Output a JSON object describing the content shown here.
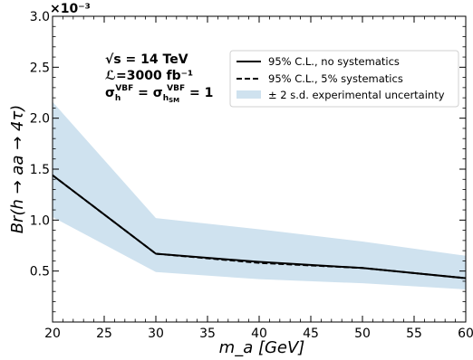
{
  "chart_data": {
    "type": "line",
    "x": [
      20,
      30,
      40,
      50,
      60
    ],
    "xlabel": "m_a [GeV]",
    "ylabel": "Br(h → aa → 4τ)",
    "xlim": [
      20,
      60
    ],
    "ylim": [
      0,
      3.0
    ],
    "y_multiplier_label": "×10⁻³",
    "x_ticks": [
      "20",
      "25",
      "30",
      "35",
      "40",
      "45",
      "50",
      "55",
      "60"
    ],
    "y_ticks": [
      "0.5",
      "1.0",
      "1.5",
      "2.0",
      "2.5",
      "3.0"
    ],
    "grid": false,
    "legend_position": "top-right",
    "series": [
      {
        "name": "95% C.L., no systematics",
        "style": "solid",
        "color": "#000000",
        "values": [
          1.44,
          0.67,
          0.59,
          0.53,
          0.43
        ]
      },
      {
        "name": "95% C.L., 5% systematics",
        "style": "dashed",
        "color": "#000000",
        "values": [
          1.44,
          0.67,
          0.58,
          0.53,
          0.43
        ]
      }
    ],
    "band": {
      "name": "± 2 s.d. experimental uncertainty",
      "color": "#cfe2ef",
      "lower": [
        1.03,
        0.49,
        0.42,
        0.38,
        0.32
      ],
      "upper": [
        2.16,
        1.02,
        0.91,
        0.79,
        0.65
      ]
    },
    "annotations": {
      "energy": "√s = 14 TeV",
      "lumi": "ℒ=3000 fb⁻¹",
      "xsec_sigma": "σ",
      "xsec_h": "h",
      "xsec_vbf": "VBF",
      "xsec_eq": " = ",
      "xsec_hsm": "h",
      "xsec_sm": "SM",
      "xsec_one": " = 1"
    }
  }
}
